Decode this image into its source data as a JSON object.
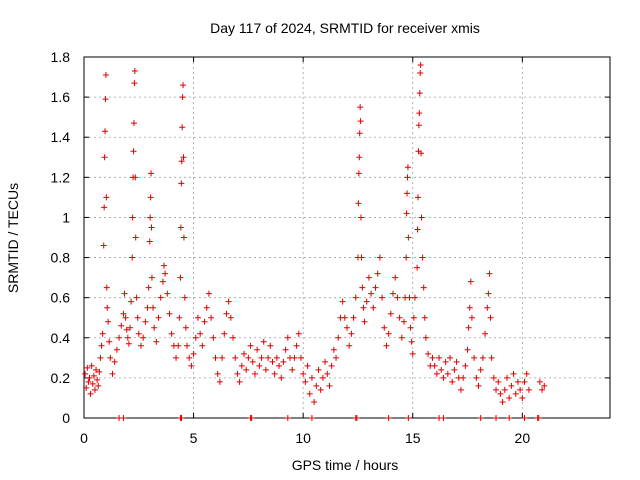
{
  "chart_data": {
    "type": "scatter",
    "title": "Day 117 of 2024, SRMTID for receiver xmis",
    "xlabel": "GPS time / hours",
    "ylabel": "SRMTID / TECUs",
    "xlim": [
      0,
      24
    ],
    "ylim": [
      0,
      1.8
    ],
    "grid": true,
    "xticks": [
      0,
      5,
      10,
      15,
      20
    ],
    "xtick_labels": [
      "0",
      "5",
      "10",
      "15",
      "20"
    ],
    "yticks": [
      0,
      0.2,
      0.4,
      0.6,
      0.8,
      1,
      1.2,
      1.4,
      1.6,
      1.8
    ],
    "ytick_labels": [
      "0",
      "0.2",
      "0.4",
      "0.6",
      "0.8",
      "1",
      "1.2",
      "1.4",
      "1.6",
      "1.8"
    ],
    "marker": "plus",
    "marker_color": "#e00000",
    "series": [
      {
        "name": "SRMTID",
        "points": [
          [
            0.05,
            0.22
          ],
          [
            0.1,
            0.15
          ],
          [
            0.15,
            0.25
          ],
          [
            0.2,
            0.18
          ],
          [
            0.25,
            0.2
          ],
          [
            0.3,
            0.12
          ],
          [
            0.35,
            0.26
          ],
          [
            0.4,
            0.17
          ],
          [
            0.45,
            0.21
          ],
          [
            0.5,
            0.14
          ],
          [
            0.55,
            0.24
          ],
          [
            0.6,
            0.19
          ],
          [
            0.65,
            0.16
          ],
          [
            0.7,
            0.23
          ],
          [
            0.75,
            0.3
          ],
          [
            0.8,
            0.36
          ],
          [
            0.85,
            0.42
          ],
          [
            0.9,
            0.86
          ],
          [
            0.92,
            1.05
          ],
          [
            0.94,
            1.3
          ],
          [
            0.96,
            1.43
          ],
          [
            0.98,
            1.59
          ],
          [
            1.0,
            1.71
          ],
          [
            1.02,
            1.1
          ],
          [
            1.04,
            0.65
          ],
          [
            1.06,
            0.55
          ],
          [
            1.1,
            0.48
          ],
          [
            1.15,
            0.38
          ],
          [
            1.2,
            0.3
          ],
          [
            1.3,
            0.22
          ],
          [
            1.4,
            0.28
          ],
          [
            1.5,
            0.34
          ],
          [
            1.6,
            0.4
          ],
          [
            1.7,
            0.46
          ],
          [
            1.8,
            0.52
          ],
          [
            1.85,
            0.62
          ],
          [
            1.9,
            0.5
          ],
          [
            1.95,
            0.44
          ],
          [
            2.0,
            0.4
          ],
          [
            2.05,
            0.37
          ],
          [
            2.1,
            0.45
          ],
          [
            2.15,
            0.58
          ],
          [
            2.2,
            0.8
          ],
          [
            2.22,
            1.0
          ],
          [
            2.24,
            1.2
          ],
          [
            2.26,
            1.33
          ],
          [
            2.28,
            1.47
          ],
          [
            2.3,
            1.67
          ],
          [
            2.32,
            1.73
          ],
          [
            2.34,
            1.2
          ],
          [
            2.36,
            0.9
          ],
          [
            2.4,
            0.6
          ],
          [
            2.45,
            0.5
          ],
          [
            2.5,
            0.42
          ],
          [
            2.6,
            0.36
          ],
          [
            2.7,
            0.4
          ],
          [
            2.8,
            0.48
          ],
          [
            2.9,
            0.55
          ],
          [
            2.95,
            0.65
          ],
          [
            3.0,
            0.88
          ],
          [
            3.02,
            1.0
          ],
          [
            3.04,
            1.1
          ],
          [
            3.06,
            1.22
          ],
          [
            3.08,
            0.95
          ],
          [
            3.1,
            0.7
          ],
          [
            3.15,
            0.55
          ],
          [
            3.2,
            0.45
          ],
          [
            3.3,
            0.38
          ],
          [
            3.4,
            0.5
          ],
          [
            3.5,
            0.6
          ],
          [
            3.6,
            0.68
          ],
          [
            3.65,
            0.76
          ],
          [
            3.7,
            0.72
          ],
          [
            3.8,
            0.62
          ],
          [
            3.9,
            0.52
          ],
          [
            4.0,
            0.42
          ],
          [
            4.1,
            0.36
          ],
          [
            4.2,
            0.3
          ],
          [
            4.3,
            0.36
          ],
          [
            4.35,
            0.5
          ],
          [
            4.4,
            0.7
          ],
          [
            4.42,
            0.95
          ],
          [
            4.44,
            1.17
          ],
          [
            4.46,
            1.28
          ],
          [
            4.48,
            1.45
          ],
          [
            4.5,
            1.6
          ],
          [
            4.52,
            1.66
          ],
          [
            4.54,
            1.3
          ],
          [
            4.56,
            0.9
          ],
          [
            4.6,
            0.6
          ],
          [
            4.65,
            0.45
          ],
          [
            4.7,
            0.36
          ],
          [
            4.8,
            0.3
          ],
          [
            4.9,
            0.26
          ],
          [
            5.0,
            0.32
          ],
          [
            5.1,
            0.4
          ],
          [
            5.2,
            0.5
          ],
          [
            5.3,
            0.42
          ],
          [
            5.4,
            0.36
          ],
          [
            5.5,
            0.48
          ],
          [
            5.6,
            0.55
          ],
          [
            5.7,
            0.62
          ],
          [
            5.8,
            0.5
          ],
          [
            5.9,
            0.4
          ],
          [
            6.0,
            0.3
          ],
          [
            6.1,
            0.22
          ],
          [
            6.2,
            0.18
          ],
          [
            6.3,
            0.3
          ],
          [
            6.4,
            0.42
          ],
          [
            6.5,
            0.52
          ],
          [
            6.6,
            0.58
          ],
          [
            6.7,
            0.5
          ],
          [
            6.8,
            0.4
          ],
          [
            6.9,
            0.3
          ],
          [
            7.0,
            0.22
          ],
          [
            7.1,
            0.18
          ],
          [
            7.2,
            0.26
          ],
          [
            7.3,
            0.32
          ],
          [
            7.4,
            0.24
          ],
          [
            7.5,
            0.3
          ],
          [
            7.6,
            0.36
          ],
          [
            7.7,
            0.28
          ],
          [
            7.8,
            0.22
          ],
          [
            7.9,
            0.34
          ],
          [
            8.0,
            0.26
          ],
          [
            8.1,
            0.3
          ],
          [
            8.2,
            0.38
          ],
          [
            8.3,
            0.24
          ],
          [
            8.4,
            0.3
          ],
          [
            8.5,
            0.36
          ],
          [
            8.6,
            0.28
          ],
          [
            8.7,
            0.22
          ],
          [
            8.8,
            0.3
          ],
          [
            8.9,
            0.26
          ],
          [
            9.0,
            0.2
          ],
          [
            9.1,
            0.28
          ],
          [
            9.2,
            0.34
          ],
          [
            9.3,
            0.4
          ],
          [
            9.4,
            0.3
          ],
          [
            9.5,
            0.24
          ],
          [
            9.6,
            0.3
          ],
          [
            9.7,
            0.36
          ],
          [
            9.8,
            0.42
          ],
          [
            9.9,
            0.3
          ],
          [
            10.0,
            0.22
          ],
          [
            10.1,
            0.18
          ],
          [
            10.2,
            0.26
          ],
          [
            10.3,
            0.12
          ],
          [
            10.4,
            0.2
          ],
          [
            10.5,
            0.08
          ],
          [
            10.6,
            0.16
          ],
          [
            10.7,
            0.24
          ],
          [
            10.8,
            0.14
          ],
          [
            10.9,
            0.2
          ],
          [
            11.0,
            0.28
          ],
          [
            11.1,
            0.22
          ],
          [
            11.2,
            0.16
          ],
          [
            11.3,
            0.26
          ],
          [
            11.4,
            0.34
          ],
          [
            11.5,
            0.3
          ],
          [
            11.6,
            0.4
          ],
          [
            11.7,
            0.5
          ],
          [
            11.8,
            0.58
          ],
          [
            11.9,
            0.5
          ],
          [
            12.0,
            0.45
          ],
          [
            12.1,
            0.36
          ],
          [
            12.2,
            0.42
          ],
          [
            12.3,
            0.5
          ],
          [
            12.4,
            0.6
          ],
          [
            12.5,
            0.8
          ],
          [
            12.52,
            1.07
          ],
          [
            12.54,
            1.22
          ],
          [
            12.56,
            1.3
          ],
          [
            12.58,
            1.42
          ],
          [
            12.6,
            1.55
          ],
          [
            12.62,
            1.48
          ],
          [
            12.64,
            1.0
          ],
          [
            12.66,
            0.8
          ],
          [
            12.7,
            0.65
          ],
          [
            12.75,
            0.55
          ],
          [
            12.8,
            0.48
          ],
          [
            12.9,
            0.58
          ],
          [
            13.0,
            0.7
          ],
          [
            13.1,
            0.62
          ],
          [
            13.2,
            0.55
          ],
          [
            13.3,
            0.65
          ],
          [
            13.4,
            0.72
          ],
          [
            13.5,
            0.8
          ],
          [
            13.6,
            0.6
          ],
          [
            13.7,
            0.45
          ],
          [
            13.8,
            0.36
          ],
          [
            13.9,
            0.42
          ],
          [
            14.0,
            0.52
          ],
          [
            14.1,
            0.62
          ],
          [
            14.2,
            0.7
          ],
          [
            14.3,
            0.6
          ],
          [
            14.4,
            0.5
          ],
          [
            14.5,
            0.4
          ],
          [
            14.6,
            0.48
          ],
          [
            14.65,
            0.6
          ],
          [
            14.7,
            0.8
          ],
          [
            14.72,
            1.02
          ],
          [
            14.74,
            1.12
          ],
          [
            14.76,
            1.2
          ],
          [
            14.78,
            1.25
          ],
          [
            14.8,
            0.9
          ],
          [
            14.85,
            0.6
          ],
          [
            14.9,
            0.45
          ],
          [
            14.95,
            0.38
          ],
          [
            15.0,
            0.32
          ],
          [
            15.05,
            0.5
          ],
          [
            15.1,
            0.6
          ],
          [
            15.2,
            0.75
          ],
          [
            15.22,
            0.94
          ],
          [
            15.24,
            1.1
          ],
          [
            15.26,
            1.33
          ],
          [
            15.28,
            1.46
          ],
          [
            15.3,
            1.52
          ],
          [
            15.32,
            1.62
          ],
          [
            15.34,
            1.72
          ],
          [
            15.36,
            1.76
          ],
          [
            15.38,
            1.32
          ],
          [
            15.4,
            1.0
          ],
          [
            15.45,
            0.8
          ],
          [
            15.5,
            0.65
          ],
          [
            15.55,
            0.5
          ],
          [
            15.6,
            0.4
          ],
          [
            15.7,
            0.32
          ],
          [
            15.8,
            0.26
          ],
          [
            15.9,
            0.3
          ],
          [
            16.0,
            0.26
          ],
          [
            16.1,
            0.22
          ],
          [
            16.2,
            0.3
          ],
          [
            16.3,
            0.24
          ],
          [
            16.4,
            0.2
          ],
          [
            16.5,
            0.28
          ],
          [
            16.6,
            0.22
          ],
          [
            16.7,
            0.3
          ],
          [
            16.8,
            0.18
          ],
          [
            16.9,
            0.24
          ],
          [
            17.0,
            0.28
          ],
          [
            17.1,
            0.2
          ],
          [
            17.2,
            0.14
          ],
          [
            17.3,
            0.2
          ],
          [
            17.4,
            0.26
          ],
          [
            17.5,
            0.34
          ],
          [
            17.55,
            0.45
          ],
          [
            17.6,
            0.55
          ],
          [
            17.65,
            0.68
          ],
          [
            17.7,
            0.5
          ],
          [
            17.8,
            0.3
          ],
          [
            17.9,
            0.2
          ],
          [
            18.0,
            0.16
          ],
          [
            18.1,
            0.24
          ],
          [
            18.2,
            0.3
          ],
          [
            18.3,
            0.42
          ],
          [
            18.4,
            0.55
          ],
          [
            18.45,
            0.62
          ],
          [
            18.5,
            0.72
          ],
          [
            18.55,
            0.5
          ],
          [
            18.6,
            0.3
          ],
          [
            18.7,
            0.2
          ],
          [
            18.8,
            0.14
          ],
          [
            18.9,
            0.18
          ],
          [
            19.0,
            0.12
          ],
          [
            19.1,
            0.08
          ],
          [
            19.2,
            0.14
          ],
          [
            19.3,
            0.2
          ],
          [
            19.4,
            0.1
          ],
          [
            19.5,
            0.16
          ],
          [
            19.6,
            0.22
          ],
          [
            19.7,
            0.12
          ],
          [
            19.8,
            0.18
          ],
          [
            19.9,
            0.14
          ],
          [
            20.0,
            0.1
          ],
          [
            20.1,
            0.18
          ],
          [
            20.2,
            0.22
          ],
          [
            20.3,
            0.14
          ],
          [
            20.8,
            0.18
          ],
          [
            20.9,
            0.14
          ],
          [
            21.0,
            0.16
          ]
        ]
      }
    ],
    "baseline_markers_x": [
      1.6,
      1.8,
      4.4,
      4.45,
      7.6,
      7.65,
      9.3,
      10.4,
      12.4,
      12.45,
      13.9,
      14.8,
      16.2,
      16.4,
      18.1,
      18.8,
      19.4,
      20.1,
      20.7,
      20.75
    ]
  }
}
